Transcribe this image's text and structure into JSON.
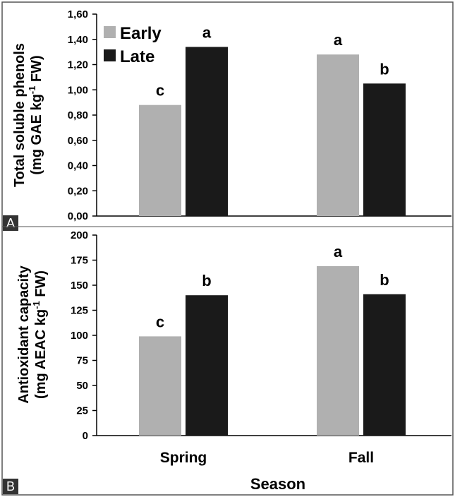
{
  "chart_data": [
    {
      "panel": "A",
      "type": "bar",
      "categories": [
        "Spring",
        "Fall"
      ],
      "series": [
        {
          "name": "Early",
          "color": "#b0b0b0",
          "values": [
            0.88,
            1.28
          ],
          "labels": [
            "c",
            "a"
          ]
        },
        {
          "name": "Late",
          "color": "#1a1a1a",
          "values": [
            1.34,
            1.05
          ],
          "labels": [
            "a",
            "b"
          ]
        }
      ],
      "ylabel_line1": "Total soluble phenols",
      "ylabel_line2_pre": "(mg GAE kg",
      "ylabel_sup": "-1",
      "ylabel_line2_post": " FW)",
      "ylim": [
        0,
        1.6
      ],
      "yticks": [
        0,
        0.2,
        0.4,
        0.6,
        0.8,
        1.0,
        1.2,
        1.4,
        1.6
      ],
      "ytick_labels": [
        "0,00",
        "0,20",
        "0,40",
        "0,60",
        "0,80",
        "1,00",
        "1,20",
        "1,40",
        "1,60"
      ],
      "legend": "top-left",
      "grid": false
    },
    {
      "panel": "B",
      "type": "bar",
      "categories": [
        "Spring",
        "Fall"
      ],
      "series": [
        {
          "name": "Early",
          "color": "#b0b0b0",
          "values": [
            99,
            169
          ],
          "labels": [
            "c",
            "a"
          ]
        },
        {
          "name": "Late",
          "color": "#1a1a1a",
          "values": [
            140,
            141
          ],
          "labels": [
            "b",
            "b"
          ]
        }
      ],
      "ylabel_line1": "Antioxidant capacity",
      "ylabel_line2_pre": "(mg AEAC kg",
      "ylabel_sup": "-1",
      "ylabel_line2_post": " FW)",
      "ylim": [
        0,
        200
      ],
      "yticks": [
        0,
        25,
        50,
        75,
        100,
        125,
        150,
        175,
        200
      ],
      "ytick_labels": [
        "0",
        "25",
        "50",
        "75",
        "100",
        "125",
        "150",
        "175",
        "200"
      ],
      "xlabel": "Season",
      "grid": false
    }
  ],
  "legend": {
    "items": [
      {
        "label": "Early",
        "color": "#b0b0b0"
      },
      {
        "label": "Late",
        "color": "#1a1a1a"
      }
    ]
  },
  "panel_tags": [
    "A",
    "B"
  ]
}
